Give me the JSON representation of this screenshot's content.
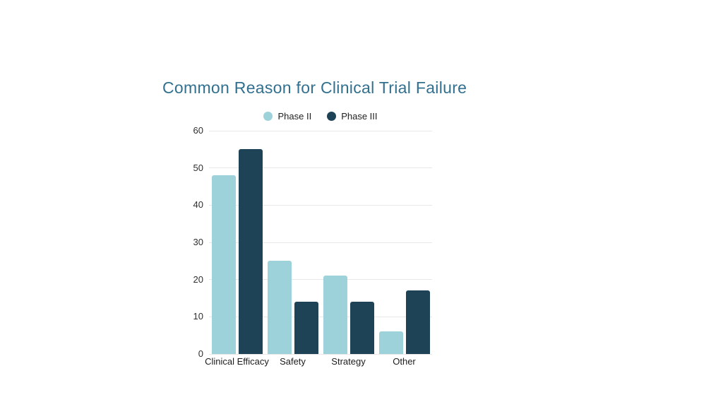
{
  "page": {
    "background": "#ffffff"
  },
  "chart_data": {
    "type": "bar",
    "title": "Common Reason for Clinical Trial Failure",
    "categories": [
      "Clinical Efficacy",
      "Safety",
      "Strategy",
      "Other"
    ],
    "series": [
      {
        "name": "Phase II",
        "color": "#9dd2da",
        "values": [
          48,
          25,
          21,
          6
        ]
      },
      {
        "name": "Phase III",
        "color": "#1e4356",
        "values": [
          55,
          14,
          14,
          17
        ]
      }
    ],
    "xlabel": "",
    "ylabel": "",
    "ylim": [
      0,
      60
    ],
    "ytick_step": 10,
    "yticks": [
      0,
      10,
      20,
      30,
      40,
      50,
      60
    ],
    "grid": true,
    "legend_position": "top-center"
  },
  "colors": {
    "title": "#32708f",
    "gridline": "#e8e8e8",
    "axis_text": "#2e2e2e",
    "category_text": "#1c1c1c"
  }
}
